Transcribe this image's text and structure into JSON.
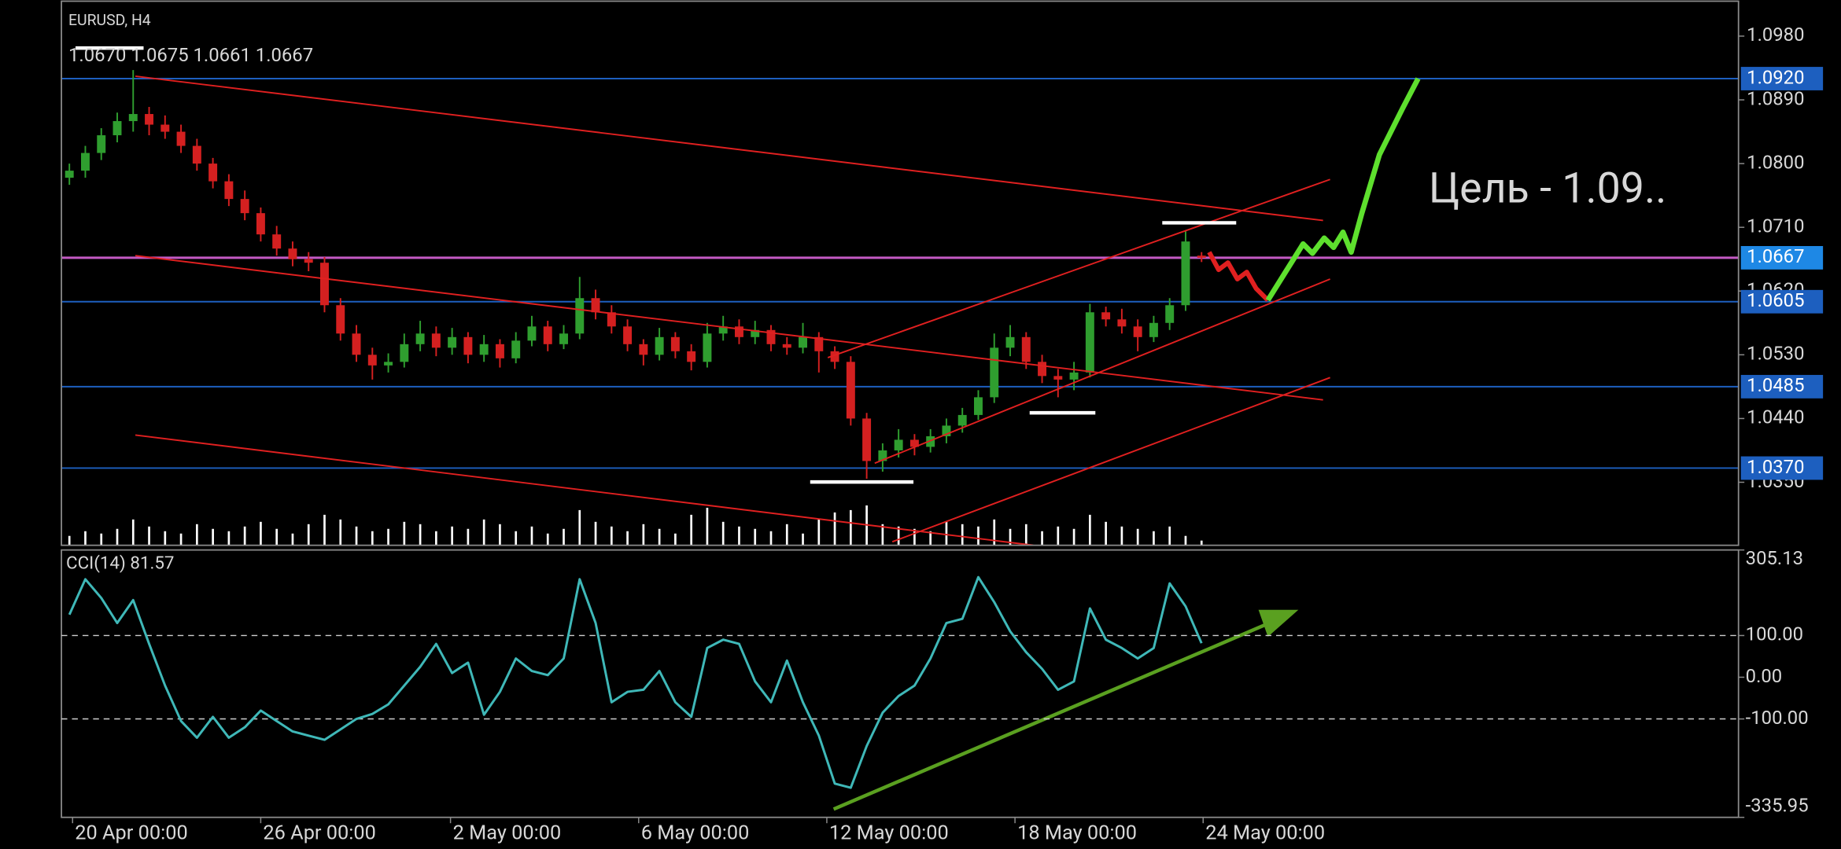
{
  "chart_data": [
    {
      "type": "candlestick",
      "title": "EURUSD, H4",
      "subtitle": "1.0670 1.0675 1.0661 1.0667",
      "annotation": "Цель - 1.09..",
      "up_color": "#2f9e2f",
      "down_color": "#d42020",
      "volume_color": "#ffffff",
      "level_color": "#1d5fbf",
      "current_color": "#c45ac4",
      "xlim": [
        -0.5,
        104.6
      ],
      "xticks": [
        {
          "value": 0.2,
          "label": "20 Apr 00:00"
        },
        {
          "value": 12.0,
          "label": "26 Apr 00:00"
        },
        {
          "value": 23.9,
          "label": "2 May 00:00"
        },
        {
          "value": 35.7,
          "label": "6 May 00:00"
        },
        {
          "value": 47.5,
          "label": "12 May 00:00"
        },
        {
          "value": 59.3,
          "label": "18 May 00:00"
        },
        {
          "value": 71.1,
          "label": "24 May 00:00"
        }
      ],
      "ylim": [
        1.0261,
        1.1031
      ],
      "yticks": [
        {
          "value": 1.098,
          "label": "1.0980"
        },
        {
          "value": 1.089,
          "label": "1.0890"
        },
        {
          "value": 1.08,
          "label": "1.0800"
        },
        {
          "value": 1.071,
          "label": "1.0710"
        },
        {
          "value": 1.062,
          "label": "1.0620"
        },
        {
          "value": 1.053,
          "label": "1.0530"
        },
        {
          "value": 1.044,
          "label": "1.0440"
        },
        {
          "value": 1.035,
          "label": "1.0350"
        }
      ],
      "levels": [
        {
          "value": 1.092,
          "label": "1.0920"
        },
        {
          "value": 1.0605,
          "label": "1.0605"
        },
        {
          "value": 1.0485,
          "label": "1.0485"
        },
        {
          "value": 1.037,
          "label": "1.0370"
        }
      ],
      "current": {
        "value": 1.0667,
        "label": "1.0667"
      },
      "ohlc": [
        [
          1.078,
          1.08,
          1.077,
          1.079
        ],
        [
          1.079,
          1.0825,
          1.078,
          1.0815
        ],
        [
          1.0815,
          1.085,
          1.0805,
          1.084
        ],
        [
          1.084,
          1.0872,
          1.083,
          1.086
        ],
        [
          1.086,
          1.0932,
          1.0845,
          1.087
        ],
        [
          1.087,
          1.088,
          1.084,
          1.0855
        ],
        [
          1.0855,
          1.0868,
          1.0835,
          1.0845
        ],
        [
          1.0845,
          1.0855,
          1.0815,
          1.0825
        ],
        [
          1.0825,
          1.0835,
          1.079,
          1.08
        ],
        [
          1.08,
          1.0808,
          1.0765,
          1.0775
        ],
        [
          1.0775,
          1.0785,
          1.074,
          1.075
        ],
        [
          1.075,
          1.0762,
          1.072,
          1.073
        ],
        [
          1.073,
          1.0738,
          1.069,
          1.07
        ],
        [
          1.07,
          1.0712,
          1.067,
          1.068
        ],
        [
          1.068,
          1.069,
          1.0655,
          1.0665
        ],
        [
          1.0665,
          1.0675,
          1.0648,
          1.066
        ],
        [
          1.066,
          1.0668,
          1.059,
          1.06
        ],
        [
          1.06,
          1.061,
          1.055,
          1.056
        ],
        [
          1.056,
          1.0572,
          1.052,
          1.053
        ],
        [
          1.053,
          1.054,
          1.0495,
          1.0515
        ],
        [
          1.0515,
          1.0532,
          1.0505,
          1.052
        ],
        [
          1.052,
          1.056,
          1.0512,
          1.0545
        ],
        [
          1.0545,
          1.0578,
          1.0535,
          1.056
        ],
        [
          1.056,
          1.057,
          1.0528,
          1.054
        ],
        [
          1.054,
          1.0568,
          1.053,
          1.0555
        ],
        [
          1.0555,
          1.0562,
          1.0518,
          1.053
        ],
        [
          1.053,
          1.0558,
          1.052,
          1.0545
        ],
        [
          1.0545,
          1.0552,
          1.0512,
          1.0525
        ],
        [
          1.0525,
          1.0562,
          1.0518,
          1.055
        ],
        [
          1.055,
          1.0585,
          1.0542,
          1.057
        ],
        [
          1.057,
          1.0578,
          1.0535,
          1.0545
        ],
        [
          1.0545,
          1.0572,
          1.0538,
          1.056
        ],
        [
          1.056,
          1.064,
          1.0552,
          1.061
        ],
        [
          1.061,
          1.0622,
          1.058,
          1.059
        ],
        [
          1.059,
          1.06,
          1.056,
          1.057
        ],
        [
          1.057,
          1.058,
          1.0535,
          1.0545
        ],
        [
          1.0545,
          1.0552,
          1.0515,
          1.053
        ],
        [
          1.053,
          1.0568,
          1.0522,
          1.0555
        ],
        [
          1.0555,
          1.0562,
          1.0525,
          1.0535
        ],
        [
          1.0535,
          1.0545,
          1.0508,
          1.052
        ],
        [
          1.052,
          1.0575,
          1.0512,
          1.056
        ],
        [
          1.056,
          1.0585,
          1.055,
          1.057
        ],
        [
          1.057,
          1.058,
          1.0545,
          1.0555
        ],
        [
          1.0555,
          1.0578,
          1.0545,
          1.0565
        ],
        [
          1.0565,
          1.0572,
          1.0535,
          1.0545
        ],
        [
          1.0545,
          1.0555,
          1.053,
          1.054
        ],
        [
          1.054,
          1.0575,
          1.0532,
          1.0555
        ],
        [
          1.0555,
          1.0562,
          1.0505,
          1.0535
        ],
        [
          1.0535,
          1.0542,
          1.051,
          1.052
        ],
        [
          1.052,
          1.0528,
          1.043,
          1.044
        ],
        [
          1.044,
          1.0448,
          1.0355,
          1.038
        ],
        [
          1.038,
          1.0405,
          1.0365,
          1.0395
        ],
        [
          1.0395,
          1.0425,
          1.0385,
          1.041
        ],
        [
          1.041,
          1.0418,
          1.0388,
          1.04
        ],
        [
          1.04,
          1.0425,
          1.0392,
          1.0415
        ],
        [
          1.0415,
          1.044,
          1.0405,
          1.043
        ],
        [
          1.043,
          1.0455,
          1.042,
          1.0445
        ],
        [
          1.0445,
          1.048,
          1.0438,
          1.047
        ],
        [
          1.047,
          1.056,
          1.0462,
          1.054
        ],
        [
          1.054,
          1.0572,
          1.0528,
          1.0555
        ],
        [
          1.0555,
          1.0562,
          1.051,
          1.052
        ],
        [
          1.052,
          1.053,
          1.049,
          1.05
        ],
        [
          1.05,
          1.051,
          1.047,
          1.0495
        ],
        [
          1.0495,
          1.052,
          1.048,
          1.0505
        ],
        [
          1.0505,
          1.0602,
          1.0498,
          1.059
        ],
        [
          1.059,
          1.0598,
          1.057,
          1.058
        ],
        [
          1.058,
          1.0595,
          1.056,
          1.057
        ],
        [
          1.057,
          1.058,
          1.0535,
          1.0555
        ],
        [
          1.0555,
          1.0585,
          1.0548,
          1.0575
        ],
        [
          1.0575,
          1.061,
          1.0565,
          1.06
        ],
        [
          1.06,
          1.0705,
          1.0592,
          1.069
        ],
        [
          1.067,
          1.0675,
          1.0661,
          1.0667
        ]
      ],
      "volume": [
        8,
        12,
        10,
        14,
        22,
        16,
        12,
        10,
        18,
        14,
        12,
        16,
        20,
        14,
        10,
        18,
        26,
        22,
        16,
        12,
        14,
        20,
        18,
        12,
        16,
        14,
        22,
        18,
        12,
        16,
        10,
        14,
        30,
        20,
        16,
        12,
        18,
        14,
        10,
        26,
        32,
        20,
        16,
        14,
        12,
        18,
        10,
        22,
        28,
        30,
        34,
        18,
        16,
        14,
        12,
        20,
        18,
        16,
        22,
        14,
        18,
        12,
        16,
        14,
        26,
        20,
        16,
        14,
        12,
        16,
        8,
        4
      ]
    },
    {
      "type": "line",
      "title": "CCI(14)",
      "color": "#3fb8b8",
      "xlim": [
        -0.5,
        104.6
      ],
      "ylim": [
        -335.95,
        305.13
      ],
      "yticks": [
        305.13,
        {
          "value": 100,
          "label": "100.00"
        },
        {
          "value": 0,
          "label": "0.00"
        },
        {
          "value": -100,
          "label": "-100.00"
        },
        -335.95
      ],
      "levels": [
        100,
        -100
      ],
      "values": [
        150,
        235,
        190,
        130,
        185,
        80,
        -20,
        -105,
        -145,
        -95,
        -145,
        -120,
        -80,
        -105,
        -130,
        -140,
        -150,
        -125,
        -100,
        -88,
        -65,
        -20,
        25,
        80,
        10,
        35,
        -90,
        -35,
        45,
        15,
        5,
        45,
        235,
        130,
        -60,
        -35,
        -30,
        15,
        -60,
        -95,
        70,
        90,
        80,
        -10,
        -60,
        40,
        -60,
        -140,
        -255,
        -265,
        -165,
        -85,
        -45,
        -20,
        45,
        130,
        140,
        240,
        180,
        110,
        60,
        20,
        -30,
        -10,
        165,
        90,
        70,
        45,
        70,
        225,
        170,
        81.57
      ]
    }
  ]
}
